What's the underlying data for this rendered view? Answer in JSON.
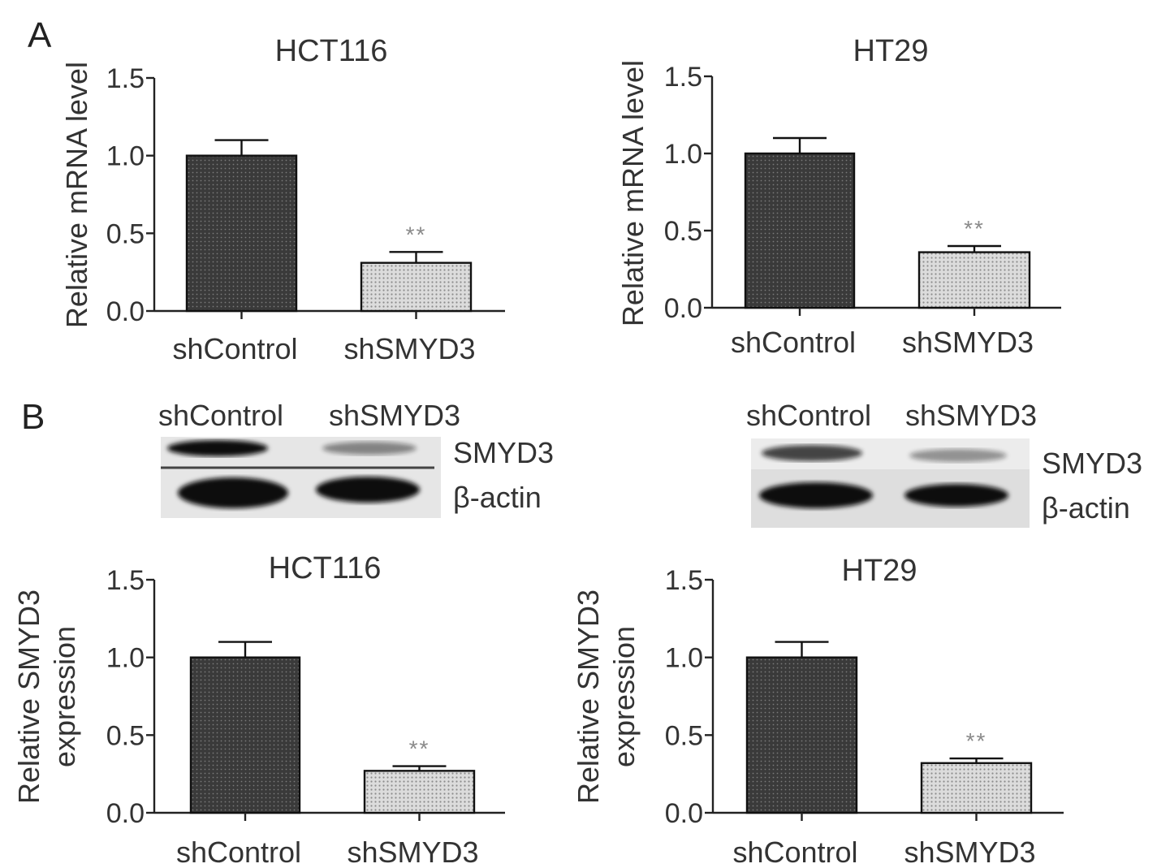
{
  "panels": {
    "a": "A",
    "b": "B"
  },
  "colors": {
    "dark_bar": "#3b3b3b",
    "light_bar": "#c9c9c9",
    "significance": "#8a8a8a"
  },
  "chart_data": [
    {
      "type": "bar",
      "title": "HCT116",
      "ylabel": "Relative mRNA level",
      "categories": [
        "shControl",
        "shSMYD3"
      ],
      "values": [
        1.0,
        0.31
      ],
      "errors": [
        0.1,
        0.07
      ],
      "significance": [
        "",
        "**"
      ],
      "ylim": [
        0,
        1.5
      ],
      "yticks": [
        "0.0",
        "0.5",
        "1.0",
        "1.5"
      ]
    },
    {
      "type": "bar",
      "title": "HT29",
      "ylabel": "Relative mRNA level",
      "categories": [
        "shControl",
        "shSMYD3"
      ],
      "values": [
        1.0,
        0.36
      ],
      "errors": [
        0.1,
        0.04
      ],
      "significance": [
        "",
        "**"
      ],
      "ylim": [
        0,
        1.5
      ],
      "yticks": [
        "0.0",
        "0.5",
        "1.0",
        "1.5"
      ]
    },
    {
      "type": "bar",
      "title": "HCT116",
      "ylabel": [
        "Relative SMYD3",
        "expression"
      ],
      "categories": [
        "shControl",
        "shSMYD3"
      ],
      "values": [
        1.0,
        0.27
      ],
      "errors": [
        0.1,
        0.03
      ],
      "significance": [
        "",
        "**"
      ],
      "ylim": [
        0,
        1.5
      ],
      "yticks": [
        "0.0",
        "0.5",
        "1.0",
        "1.5"
      ]
    },
    {
      "type": "bar",
      "title": "HT29",
      "ylabel": [
        "Relative SMYD3",
        "expression"
      ],
      "categories": [
        "shControl",
        "shSMYD3"
      ],
      "values": [
        1.0,
        0.32
      ],
      "errors": [
        0.1,
        0.03
      ],
      "significance": [
        "",
        "**"
      ],
      "ylim": [
        0,
        1.5
      ],
      "yticks": [
        "0.0",
        "0.5",
        "1.0",
        "1.5"
      ]
    }
  ],
  "blots": [
    {
      "lanes": [
        "shControl",
        "shSMYD3"
      ],
      "bands": [
        "SMYD3",
        "β-actin"
      ],
      "smyd3_intensity": [
        1.0,
        0.45
      ]
    },
    {
      "lanes": [
        "shControl",
        "shSMYD3"
      ],
      "bands": [
        "SMYD3",
        "β-actin"
      ],
      "smyd3_intensity": [
        1.0,
        0.45
      ]
    }
  ]
}
